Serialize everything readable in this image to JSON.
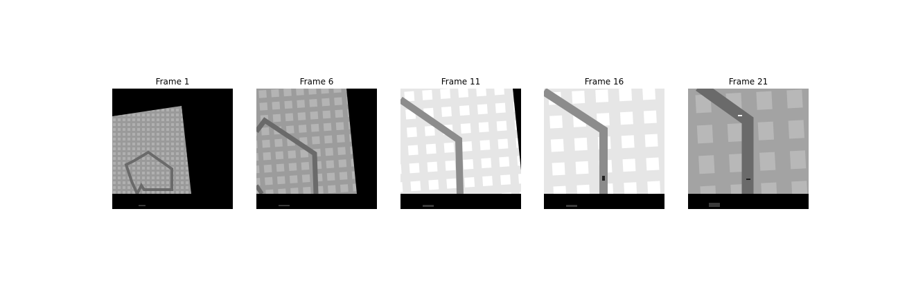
{
  "figure": {
    "frames": [
      {
        "title": "Frame 1"
      },
      {
        "title": "Frame 6"
      },
      {
        "title": "Frame 11"
      },
      {
        "title": "Frame 16"
      },
      {
        "title": "Frame 21"
      }
    ]
  },
  "colors": {
    "background": "#000000",
    "terrain_gray": "#9e9e9e",
    "terrain_light": "#e6e6e6",
    "road": "#6e6e6e",
    "status_bar": "#000000"
  }
}
